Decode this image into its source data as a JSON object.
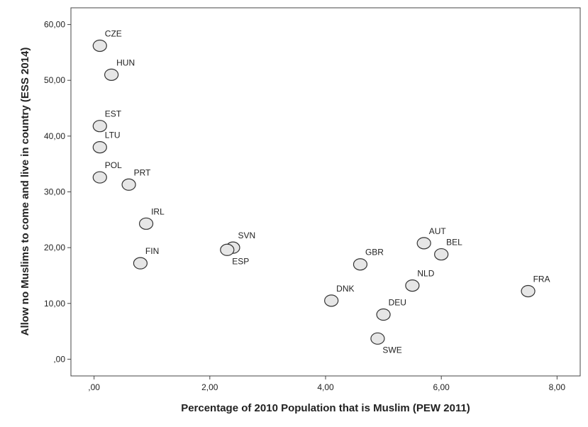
{
  "chart_data": {
    "type": "scatter",
    "xlabel": "Percentage of 2010 Population that is Muslim (PEW 2011)",
    "ylabel": "Allow no Muslims to come and live in country (ESS 2014)",
    "xlim": [
      -0.4,
      8.4
    ],
    "ylim": [
      -3,
      63
    ],
    "x_ticks": [
      0,
      2,
      4,
      6,
      8
    ],
    "x_tick_labels": [
      ",00",
      "2,00",
      "4,00",
      "6,00",
      "8,00"
    ],
    "y_ticks": [
      0,
      10,
      20,
      30,
      40,
      50,
      60
    ],
    "y_tick_labels": [
      ",00",
      "10,00",
      "20,00",
      "30,00",
      "40,00",
      "50,00",
      "60,00"
    ],
    "grid": false,
    "marker_fill": "#e6e6e6",
    "marker_stroke": "#333333",
    "points": [
      {
        "label": "CZE",
        "x": 0.1,
        "y": 56.2,
        "label_pos": "above-right"
      },
      {
        "label": "HUN",
        "x": 0.3,
        "y": 51.0,
        "label_pos": "above-right"
      },
      {
        "label": "EST",
        "x": 0.1,
        "y": 41.8,
        "label_pos": "above-right"
      },
      {
        "label": "LTU",
        "x": 0.1,
        "y": 38.0,
        "label_pos": "above-right"
      },
      {
        "label": "POL",
        "x": 0.1,
        "y": 32.6,
        "label_pos": "above-right"
      },
      {
        "label": "PRT",
        "x": 0.6,
        "y": 31.3,
        "label_pos": "above-right"
      },
      {
        "label": "IRL",
        "x": 0.9,
        "y": 24.3,
        "label_pos": "above-right"
      },
      {
        "label": "FIN",
        "x": 0.8,
        "y": 17.2,
        "label_pos": "above-right"
      },
      {
        "label": "SVN",
        "x": 2.4,
        "y": 20.0,
        "label_pos": "above-right"
      },
      {
        "label": "ESP",
        "x": 2.3,
        "y": 19.6,
        "label_pos": "below-right"
      },
      {
        "label": "GBR",
        "x": 4.6,
        "y": 17.0,
        "label_pos": "above-right"
      },
      {
        "label": "DNK",
        "x": 4.1,
        "y": 10.5,
        "label_pos": "above-right"
      },
      {
        "label": "DEU",
        "x": 5.0,
        "y": 8.0,
        "label_pos": "above-right"
      },
      {
        "label": "SWE",
        "x": 4.9,
        "y": 3.7,
        "label_pos": "below-right"
      },
      {
        "label": "NLD",
        "x": 5.5,
        "y": 13.2,
        "label_pos": "above-right"
      },
      {
        "label": "AUT",
        "x": 5.7,
        "y": 20.8,
        "label_pos": "above-right"
      },
      {
        "label": "BEL",
        "x": 6.0,
        "y": 18.8,
        "label_pos": "above-right"
      },
      {
        "label": "FRA",
        "x": 7.5,
        "y": 12.2,
        "label_pos": "above-right"
      }
    ]
  }
}
